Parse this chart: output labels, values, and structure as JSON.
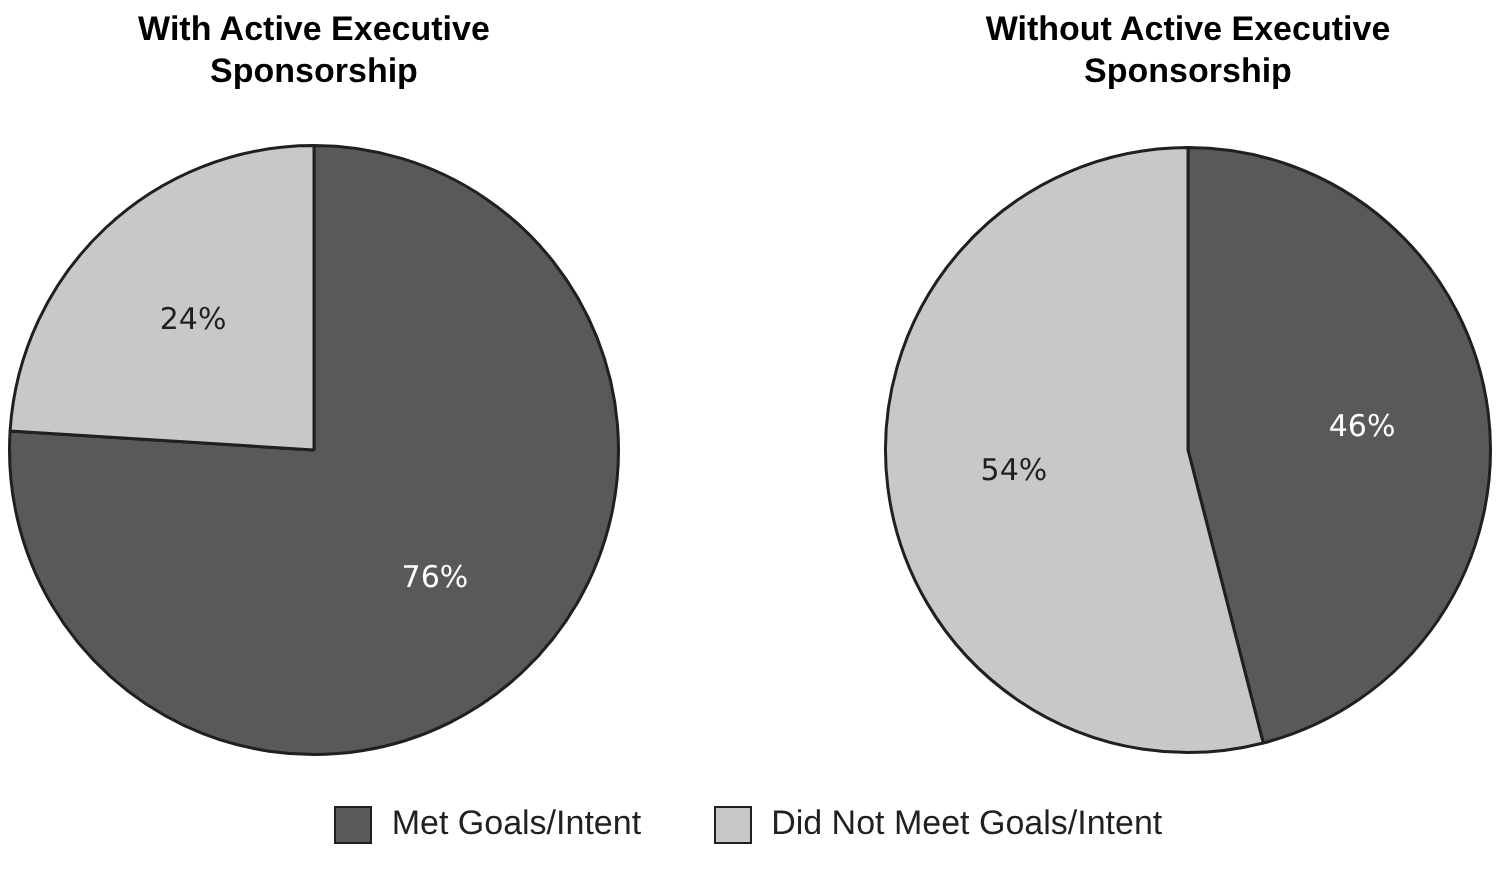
{
  "chart_data": [
    {
      "type": "pie",
      "title": "With Active Executive\nSponsorship",
      "categories": [
        "Met Goals/Intent",
        "Did Not Meet Goals/Intent"
      ],
      "values": [
        76,
        24
      ],
      "colors": [
        "#58595b",
        "#c7c8ca"
      ],
      "value_labels": [
        "76%",
        "24%"
      ],
      "legend": "bottom"
    },
    {
      "type": "pie",
      "title": "Without Active Executive\nSponsorship",
      "categories": [
        null,
        null
      ],
      "values": [
        46,
        54
      ],
      "colors": [
        "#58595b",
        "#c7c8ca"
      ],
      "value_labels": [
        "46%",
        "54%"
      ]
    }
  ]
}
